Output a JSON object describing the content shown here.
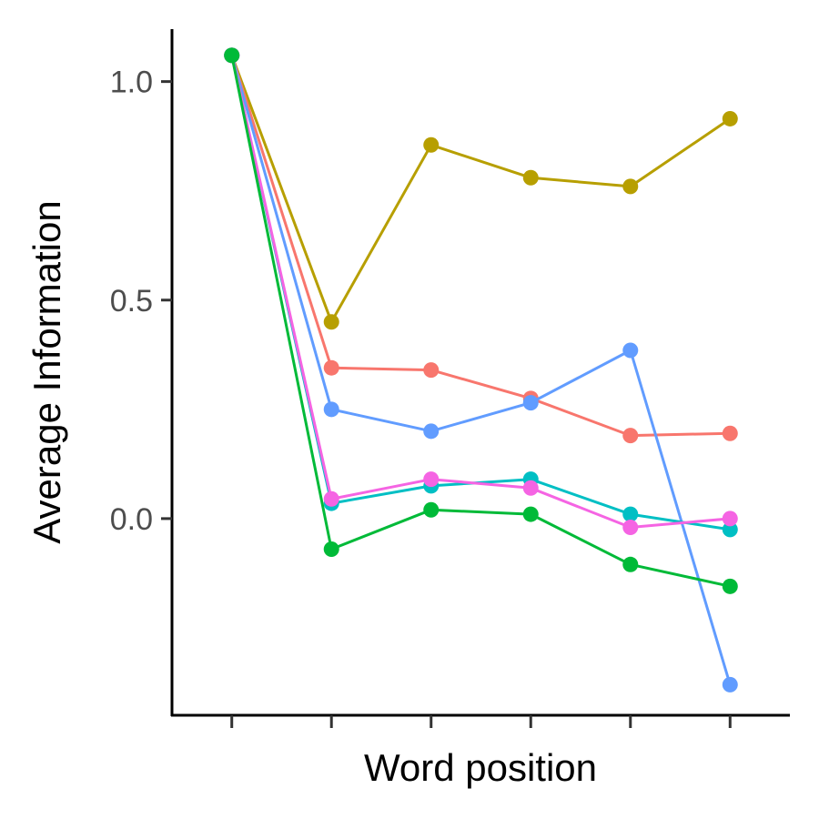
{
  "chart_data": {
    "type": "line",
    "title": "",
    "xlabel": "Word position",
    "ylabel": "Average Information",
    "x": [
      1,
      2,
      3,
      4,
      5,
      6
    ],
    "xlim": [
      0.4,
      6.6
    ],
    "ylim": [
      -0.45,
      1.12
    ],
    "yticks": [
      0.0,
      0.5,
      1.0
    ],
    "ytick_labels": [
      "0.0",
      "0.5",
      "1.0"
    ],
    "xtick_labels": [
      "",
      "",
      "",
      "",
      "",
      ""
    ],
    "grid": false,
    "legend": "none",
    "series": [
      {
        "color": "#B79F00",
        "values": [
          1.06,
          0.45,
          0.855,
          0.78,
          0.76,
          0.915
        ]
      },
      {
        "color": "#F8766D",
        "values": [
          1.06,
          0.345,
          0.34,
          0.275,
          0.19,
          0.195
        ]
      },
      {
        "color": "#619CFF",
        "values": [
          1.06,
          0.25,
          0.2,
          0.265,
          0.385,
          -0.38
        ]
      },
      {
        "color": "#00BFC4",
        "values": [
          1.06,
          0.035,
          0.075,
          0.09,
          0.01,
          -0.025
        ]
      },
      {
        "color": "#F564E3",
        "values": [
          1.06,
          0.045,
          0.09,
          0.07,
          -0.02,
          0.0
        ]
      },
      {
        "color": "#00BA38",
        "values": [
          1.06,
          -0.07,
          0.02,
          0.01,
          -0.105,
          -0.155
        ]
      }
    ]
  }
}
